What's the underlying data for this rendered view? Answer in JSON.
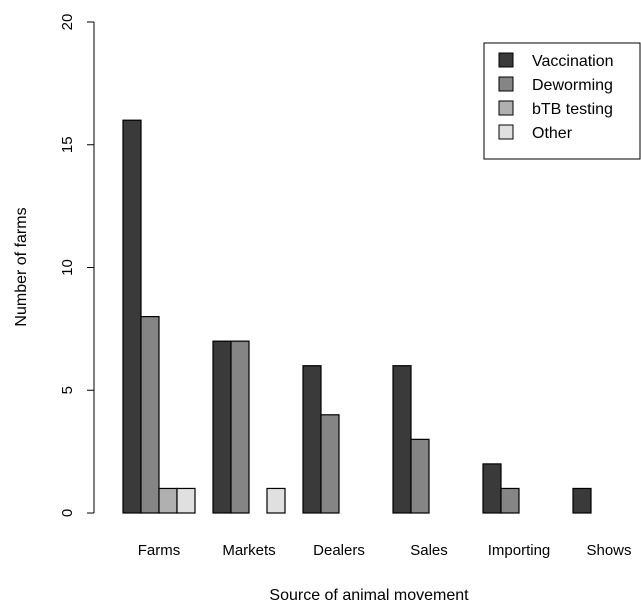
{
  "chart_data": {
    "type": "bar",
    "title": "",
    "xlabel": "Source of animal movement",
    "ylabel": "Number of farms",
    "ylim": [
      0,
      20
    ],
    "yticks": [
      "0",
      "5",
      "10",
      "15",
      "20"
    ],
    "categories": [
      "Farms",
      "Markets",
      "Dealers",
      "Sales",
      "Importing",
      "Shows"
    ],
    "series": [
      {
        "name": "Vaccination",
        "color": "#3a3a3a",
        "values": [
          16,
          7,
          6,
          6,
          2,
          1
        ]
      },
      {
        "name": "Deworming",
        "color": "#858585",
        "values": [
          8,
          7,
          4,
          3,
          1,
          0
        ]
      },
      {
        "name": "bTB testing",
        "color": "#b0b0b0",
        "values": [
          1,
          0,
          0,
          0,
          0,
          0
        ]
      },
      {
        "name": "Other",
        "color": "#e0e0e0",
        "values": [
          1,
          1,
          0,
          0,
          0,
          0
        ]
      }
    ],
    "grid": false,
    "legend_position": "top-right"
  }
}
